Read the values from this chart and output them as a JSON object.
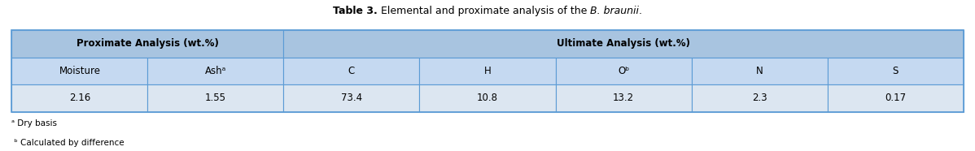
{
  "title_bold": "Table 3.",
  "title_normal": " Elemental and proximate analysis of the ",
  "title_italic": "B. braunii",
  "title_end": ".",
  "header1_text": "Proximate Analysis (wt.%)",
  "header2_text": "Ultimate Analysis (wt.%)",
  "subheaders": [
    "Moisture",
    "Ashᵃ",
    "C",
    "H",
    "Oᵇ",
    "N",
    "S"
  ],
  "values": [
    "2.16",
    "1.55",
    "73.4",
    "10.8",
    "13.2",
    "2.3",
    "0.17"
  ],
  "footnote_a": "ᵃ Dry basis",
  "footnote_b": " ᵇ Calculated by difference",
  "header_bg": "#a8c4e0",
  "subheader_bg": "#c5d9f1",
  "value_bg": "#dce6f1",
  "border_color": "#5b9bd5",
  "text_color": "#000000",
  "figsize": [
    11.98,
    1.86
  ],
  "dpi": 100
}
